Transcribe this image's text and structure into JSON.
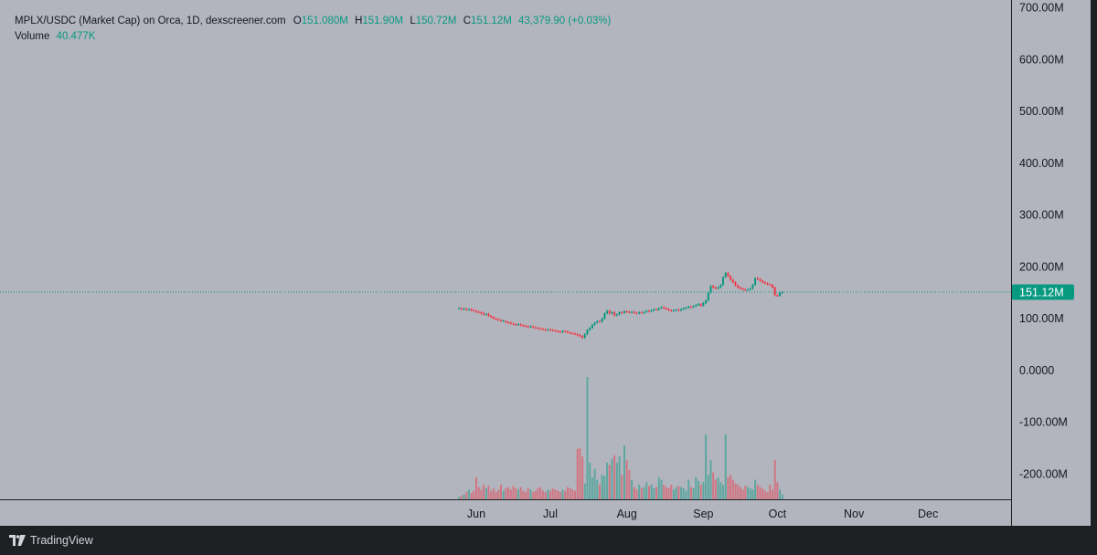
{
  "legend": {
    "symbol": "MPLX/USDC (Market Cap) on Orca, 1D, dexscreener.com",
    "o_label": "O",
    "o_value": "151.080M",
    "h_label": "H",
    "h_value": "151.90M",
    "l_label": "L",
    "l_value": "150.72M",
    "c_label": "C",
    "c_value": "151.12M",
    "change": "43,379.90 (+0.03%)",
    "volume_label": "Volume",
    "volume_value": "40.477K"
  },
  "footer": {
    "brand": "TradingView",
    "logo_icon": "tradingview-logo-icon"
  },
  "colors": {
    "background": "#b2b5be",
    "up": "#089981",
    "down": "#f23645",
    "price_line": "#089981",
    "frame": "#1f2024"
  },
  "chart_data": {
    "type": "candlestick",
    "title": "MPLX/USDC (Market Cap) on Orca, 1D, dexscreener.com",
    "y_ticks": [
      "700.00M",
      "600.00M",
      "500.00M",
      "400.00M",
      "300.00M",
      "200.00M",
      "100.00M",
      "0.0000",
      "-100.00M",
      "-200.00M"
    ],
    "y_tick_values": [
      700,
      600,
      500,
      400,
      300,
      200,
      100,
      0,
      -100,
      -200
    ],
    "y_unit": "M",
    "ylim": [
      -300,
      715
    ],
    "x_ticks": [
      "Jun",
      "Jul",
      "Aug",
      "Sep",
      "Oct",
      "Nov",
      "Dec"
    ],
    "last_price_label": "151.12M",
    "last_price": 151.12,
    "grid": false,
    "series": [
      {
        "name": "Market Cap",
        "type": "candlestick",
        "points": [
          [
            -7,
            120,
            0
          ],
          [
            -6,
            118,
            1
          ],
          [
            -5,
            119,
            0
          ],
          [
            -4,
            117,
            1
          ],
          [
            -3,
            118,
            0
          ],
          [
            -2,
            116,
            1
          ],
          [
            -1,
            115,
            1
          ],
          [
            0,
            113,
            1
          ],
          [
            1,
            112,
            1
          ],
          [
            2,
            110,
            1
          ],
          [
            3,
            108,
            1
          ],
          [
            4,
            109,
            0
          ],
          [
            5,
            105,
            1
          ],
          [
            6,
            103,
            1
          ],
          [
            7,
            100,
            1
          ],
          [
            8,
            99,
            1
          ],
          [
            9,
            97,
            1
          ],
          [
            10,
            96,
            1
          ],
          [
            11,
            95,
            0
          ],
          [
            12,
            93,
            1
          ],
          [
            13,
            92,
            1
          ],
          [
            14,
            90,
            1
          ],
          [
            15,
            89,
            1
          ],
          [
            16,
            88,
            1
          ],
          [
            17,
            89,
            0
          ],
          [
            18,
            87,
            1
          ],
          [
            19,
            86,
            1
          ],
          [
            20,
            85,
            1
          ],
          [
            21,
            84,
            1
          ],
          [
            22,
            85,
            0
          ],
          [
            23,
            83,
            1
          ],
          [
            24,
            82,
            1
          ],
          [
            25,
            81,
            1
          ],
          [
            26,
            80,
            1
          ],
          [
            27,
            79,
            1
          ],
          [
            28,
            78,
            1
          ],
          [
            29,
            79,
            0
          ],
          [
            30,
            78,
            1
          ],
          [
            31,
            77,
            1
          ],
          [
            32,
            76,
            1
          ],
          [
            33,
            75,
            1
          ],
          [
            34,
            74,
            1
          ],
          [
            35,
            76,
            0
          ],
          [
            36,
            75,
            1
          ],
          [
            37,
            73,
            1
          ],
          [
            38,
            72,
            1
          ],
          [
            39,
            71,
            1
          ],
          [
            40,
            70,
            1
          ],
          [
            41,
            68,
            1
          ],
          [
            42,
            66,
            1
          ],
          [
            43,
            63,
            1
          ],
          [
            44,
            70,
            0
          ],
          [
            45,
            78,
            0
          ],
          [
            46,
            82,
            0
          ],
          [
            47,
            88,
            0
          ],
          [
            48,
            92,
            0
          ],
          [
            49,
            95,
            0
          ],
          [
            50,
            94,
            1
          ],
          [
            51,
            100,
            0
          ],
          [
            52,
            110,
            0
          ],
          [
            53,
            115,
            0
          ],
          [
            54,
            110,
            1
          ],
          [
            55,
            112,
            0
          ],
          [
            56,
            106,
            1
          ],
          [
            57,
            108,
            0
          ],
          [
            58,
            112,
            0
          ],
          [
            59,
            111,
            1
          ],
          [
            60,
            114,
            0
          ],
          [
            61,
            113,
            1
          ],
          [
            62,
            112,
            1
          ],
          [
            63,
            113,
            0
          ],
          [
            64,
            111,
            1
          ],
          [
            65,
            110,
            1
          ],
          [
            66,
            112,
            0
          ],
          [
            67,
            111,
            1
          ],
          [
            68,
            113,
            0
          ],
          [
            69,
            115,
            0
          ],
          [
            70,
            114,
            1
          ],
          [
            71,
            116,
            0
          ],
          [
            72,
            118,
            0
          ],
          [
            73,
            117,
            1
          ],
          [
            74,
            120,
            0
          ],
          [
            75,
            122,
            0
          ],
          [
            76,
            120,
            1
          ],
          [
            77,
            118,
            1
          ],
          [
            78,
            116,
            1
          ],
          [
            79,
            115,
            1
          ],
          [
            80,
            116,
            0
          ],
          [
            81,
            117,
            0
          ],
          [
            82,
            116,
            1
          ],
          [
            83,
            118,
            0
          ],
          [
            84,
            120,
            0
          ],
          [
            85,
            121,
            0
          ],
          [
            86,
            123,
            0
          ],
          [
            87,
            122,
            1
          ],
          [
            88,
            124,
            0
          ],
          [
            89,
            126,
            0
          ],
          [
            90,
            128,
            0
          ],
          [
            91,
            125,
            1
          ],
          [
            92,
            130,
            0
          ],
          [
            93,
            135,
            0
          ],
          [
            94,
            150,
            0
          ],
          [
            95,
            163,
            0
          ],
          [
            96,
            160,
            1
          ],
          [
            97,
            158,
            1
          ],
          [
            98,
            160,
            0
          ],
          [
            99,
            165,
            0
          ],
          [
            100,
            180,
            0
          ],
          [
            101,
            188,
            0
          ],
          [
            102,
            182,
            1
          ],
          [
            103,
            175,
            1
          ],
          [
            104,
            170,
            1
          ],
          [
            105,
            164,
            1
          ],
          [
            106,
            160,
            1
          ],
          [
            107,
            158,
            1
          ],
          [
            108,
            156,
            1
          ],
          [
            109,
            155,
            1
          ],
          [
            110,
            156,
            0
          ],
          [
            111,
            158,
            0
          ],
          [
            112,
            165,
            0
          ],
          [
            113,
            178,
            0
          ],
          [
            114,
            176,
            1
          ],
          [
            115,
            173,
            1
          ],
          [
            116,
            170,
            1
          ],
          [
            117,
            168,
            1
          ],
          [
            118,
            166,
            1
          ],
          [
            119,
            165,
            1
          ],
          [
            120,
            160,
            1
          ],
          [
            121,
            145,
            1
          ],
          [
            122,
            144,
            1
          ],
          [
            123,
            150,
            0
          ],
          [
            124,
            151.12,
            0
          ]
        ]
      },
      {
        "name": "Volume",
        "type": "bar",
        "max_volume": 1000000,
        "points": [
          [
            -7,
            0.02
          ],
          [
            -6,
            0.03
          ],
          [
            -5,
            0.04
          ],
          [
            -4,
            0.06
          ],
          [
            -3,
            0.08
          ],
          [
            -2,
            0.05
          ],
          [
            -1,
            0.07
          ],
          [
            0,
            0.18
          ],
          [
            1,
            0.1
          ],
          [
            2,
            0.08
          ],
          [
            3,
            0.12
          ],
          [
            4,
            0.09
          ],
          [
            5,
            0.11
          ],
          [
            6,
            0.07
          ],
          [
            7,
            0.09
          ],
          [
            8,
            0.06
          ],
          [
            9,
            0.08
          ],
          [
            10,
            0.12
          ],
          [
            11,
            0.07
          ],
          [
            12,
            0.09
          ],
          [
            13,
            0.1
          ],
          [
            14,
            0.08
          ],
          [
            15,
            0.11
          ],
          [
            16,
            0.09
          ],
          [
            17,
            0.08
          ],
          [
            18,
            0.1
          ],
          [
            19,
            0.07
          ],
          [
            20,
            0.06
          ],
          [
            21,
            0.09
          ],
          [
            22,
            0.08
          ],
          [
            23,
            0.06
          ],
          [
            24,
            0.07
          ],
          [
            25,
            0.09
          ],
          [
            26,
            0.1
          ],
          [
            27,
            0.07
          ],
          [
            28,
            0.06
          ],
          [
            29,
            0.08
          ],
          [
            30,
            0.07
          ],
          [
            31,
            0.09
          ],
          [
            32,
            0.08
          ],
          [
            33,
            0.07
          ],
          [
            34,
            0.06
          ],
          [
            35,
            0.08
          ],
          [
            36,
            0.07
          ],
          [
            37,
            0.1
          ],
          [
            38,
            0.09
          ],
          [
            39,
            0.08
          ],
          [
            40,
            0.07
          ],
          [
            41,
            0.41
          ],
          [
            42,
            0.42
          ],
          [
            43,
            0.35
          ],
          [
            44,
            0.13
          ],
          [
            45,
            1.0
          ],
          [
            46,
            0.3
          ],
          [
            47,
            0.18
          ],
          [
            48,
            0.25
          ],
          [
            49,
            0.16
          ],
          [
            50,
            0.12
          ],
          [
            51,
            0.2
          ],
          [
            52,
            0.19
          ],
          [
            53,
            0.3
          ],
          [
            54,
            0.28
          ],
          [
            55,
            0.33
          ],
          [
            56,
            0.36
          ],
          [
            57,
            0.3
          ],
          [
            58,
            0.35
          ],
          [
            59,
            0.2
          ],
          [
            60,
            0.44
          ],
          [
            61,
            0.32
          ],
          [
            62,
            0.24
          ],
          [
            63,
            0.16
          ],
          [
            64,
            0.1
          ],
          [
            65,
            0.08
          ],
          [
            66,
            0.12
          ],
          [
            67,
            0.09
          ],
          [
            68,
            0.1
          ],
          [
            69,
            0.14
          ],
          [
            70,
            0.11
          ],
          [
            71,
            0.12
          ],
          [
            72,
            0.09
          ],
          [
            73,
            0.1
          ],
          [
            74,
            0.18
          ],
          [
            75,
            0.16
          ],
          [
            76,
            0.12
          ],
          [
            77,
            0.1
          ],
          [
            78,
            0.09
          ],
          [
            79,
            0.12
          ],
          [
            80,
            0.08
          ],
          [
            81,
            0.1
          ],
          [
            82,
            0.11
          ],
          [
            83,
            0.1
          ],
          [
            84,
            0.09
          ],
          [
            85,
            0.07
          ],
          [
            86,
            0.16
          ],
          [
            87,
            0.1
          ],
          [
            88,
            0.09
          ],
          [
            89,
            0.18
          ],
          [
            90,
            0.15
          ],
          [
            91,
            0.12
          ],
          [
            92,
            0.14
          ],
          [
            93,
            0.53
          ],
          [
            94,
            0.2
          ],
          [
            95,
            0.32
          ],
          [
            96,
            0.22
          ],
          [
            97,
            0.16
          ],
          [
            98,
            0.18
          ],
          [
            99,
            0.14
          ],
          [
            100,
            0.12
          ],
          [
            101,
            0.53
          ],
          [
            102,
            0.18
          ],
          [
            103,
            0.2
          ],
          [
            104,
            0.16
          ],
          [
            105,
            0.13
          ],
          [
            106,
            0.12
          ],
          [
            107,
            0.1
          ],
          [
            108,
            0.08
          ],
          [
            109,
            0.11
          ],
          [
            110,
            0.1
          ],
          [
            111,
            0.09
          ],
          [
            112,
            0.08
          ],
          [
            113,
            0.16
          ],
          [
            114,
            0.12
          ],
          [
            115,
            0.1
          ],
          [
            116,
            0.09
          ],
          [
            117,
            0.07
          ],
          [
            118,
            0.06
          ],
          [
            119,
            0.12
          ],
          [
            120,
            0.08
          ],
          [
            121,
            0.32
          ],
          [
            122,
            0.14
          ],
          [
            123,
            0.08
          ],
          [
            124,
            0.04
          ]
        ]
      }
    ]
  }
}
